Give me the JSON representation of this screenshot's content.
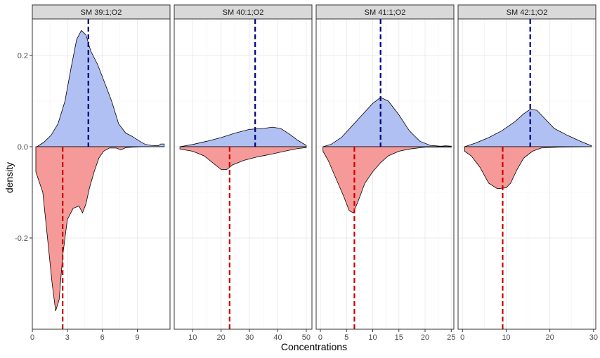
{
  "chart_data": {
    "type": "area",
    "xlabel": "Concentrations",
    "ylabel": "density",
    "ylim": [
      -0.4,
      0.28
    ],
    "yticks": [
      0.2,
      0.0,
      -0.2
    ],
    "ytick_labels": [
      "0.2",
      "0.0",
      "-0.2"
    ],
    "grid": true,
    "colors": {
      "upper_fill": "#b0c0f2",
      "lower_fill": "#f59a98",
      "upper_mean_line": "#000080",
      "lower_mean_line": "#cc0000",
      "strip_bg": "#d9d9d9"
    },
    "panels": [
      {
        "label": "SM 39:1;O2",
        "xlim": [
          0,
          11.8
        ],
        "xticks": [
          0,
          3,
          6,
          9
        ],
        "upper_mean": 4.8,
        "lower_mean": 2.6,
        "upper": [
          [
            0.4,
            0.0
          ],
          [
            1.0,
            0.01
          ],
          [
            1.6,
            0.025
          ],
          [
            2.2,
            0.05
          ],
          [
            2.8,
            0.1
          ],
          [
            3.3,
            0.17
          ],
          [
            3.8,
            0.235
          ],
          [
            4.2,
            0.255
          ],
          [
            4.6,
            0.245
          ],
          [
            5.0,
            0.21
          ],
          [
            5.6,
            0.18
          ],
          [
            6.2,
            0.14
          ],
          [
            6.8,
            0.1
          ],
          [
            7.4,
            0.05
          ],
          [
            8.0,
            0.03
          ],
          [
            8.6,
            0.022
          ],
          [
            9.2,
            0.012
          ],
          [
            9.7,
            0.005
          ],
          [
            10.2,
            0.003
          ],
          [
            10.8,
            0.002
          ],
          [
            11.0,
            0.006
          ],
          [
            11.3,
            0.006
          ]
        ],
        "lower": [
          [
            0.3,
            -0.055
          ],
          [
            0.9,
            -0.1
          ],
          [
            1.3,
            -0.2
          ],
          [
            1.7,
            -0.3
          ],
          [
            2.0,
            -0.36
          ],
          [
            2.3,
            -0.335
          ],
          [
            2.6,
            -0.24
          ],
          [
            3.0,
            -0.16
          ],
          [
            3.5,
            -0.135
          ],
          [
            4.0,
            -0.13
          ],
          [
            4.3,
            -0.145
          ],
          [
            4.6,
            -0.125
          ],
          [
            4.9,
            -0.09
          ],
          [
            5.3,
            -0.055
          ],
          [
            5.7,
            -0.025
          ],
          [
            6.1,
            -0.01
          ],
          [
            6.6,
            -0.003
          ],
          [
            7.2,
            -0.003
          ],
          [
            7.6,
            -0.007
          ],
          [
            8.0,
            -0.002
          ],
          [
            8.6,
            -0.001
          ],
          [
            9.5,
            0.0
          ],
          [
            11.3,
            0.0
          ]
        ]
      },
      {
        "label": "SM 40:1;O2",
        "xlim": [
          3.5,
          52
        ],
        "xticks": [
          10,
          20,
          30,
          40,
          50
        ],
        "upper_mean": 32,
        "lower_mean": 23,
        "upper": [
          [
            5.5,
            0.0
          ],
          [
            10,
            0.005
          ],
          [
            15,
            0.012
          ],
          [
            20,
            0.02
          ],
          [
            25,
            0.03
          ],
          [
            30,
            0.038
          ],
          [
            35,
            0.04
          ],
          [
            38,
            0.043
          ],
          [
            41,
            0.04
          ],
          [
            44,
            0.028
          ],
          [
            47,
            0.014
          ],
          [
            50,
            0.003
          ]
        ],
        "lower": [
          [
            5.5,
            -0.005
          ],
          [
            10,
            -0.01
          ],
          [
            14,
            -0.02
          ],
          [
            17,
            -0.035
          ],
          [
            20,
            -0.05
          ],
          [
            22,
            -0.05
          ],
          [
            24,
            -0.04
          ],
          [
            28,
            -0.03
          ],
          [
            33,
            -0.022
          ],
          [
            38,
            -0.016
          ],
          [
            43,
            -0.009
          ],
          [
            47,
            -0.004
          ],
          [
            50,
            -0.002
          ]
        ]
      },
      {
        "label": "SM 41:1;O2",
        "xlim": [
          -0.8,
          25.5
        ],
        "xticks": [
          0,
          5,
          10,
          15,
          20,
          25
        ],
        "upper_mean": 11.5,
        "lower_mean": 6.5,
        "upper": [
          [
            0.5,
            0.0
          ],
          [
            2,
            0.005
          ],
          [
            4,
            0.02
          ],
          [
            6,
            0.045
          ],
          [
            8,
            0.07
          ],
          [
            10,
            0.095
          ],
          [
            11.5,
            0.108
          ],
          [
            13,
            0.1
          ],
          [
            15,
            0.07
          ],
          [
            17,
            0.035
          ],
          [
            19,
            0.012
          ],
          [
            21,
            0.003
          ],
          [
            23,
            0.001
          ],
          [
            24,
            0.002
          ],
          [
            25,
            0.001
          ]
        ],
        "lower": [
          [
            0.5,
            -0.01
          ],
          [
            1.5,
            -0.03
          ],
          [
            3,
            -0.07
          ],
          [
            4.5,
            -0.11
          ],
          [
            5.5,
            -0.14
          ],
          [
            6.3,
            -0.145
          ],
          [
            7.2,
            -0.12
          ],
          [
            8.5,
            -0.08
          ],
          [
            10,
            -0.055
          ],
          [
            11.5,
            -0.035
          ],
          [
            13,
            -0.02
          ],
          [
            15,
            -0.01
          ],
          [
            17,
            -0.005
          ],
          [
            20,
            -0.001
          ],
          [
            25,
            -0.001
          ]
        ]
      },
      {
        "label": "SM 42:1;O2",
        "xlim": [
          -1,
          30.5
        ],
        "xticks": [
          0,
          10,
          20,
          30
        ],
        "upper_mean": 15.5,
        "lower_mean": 9.2,
        "upper": [
          [
            0.5,
            0.0
          ],
          [
            3,
            0.008
          ],
          [
            6,
            0.02
          ],
          [
            9,
            0.035
          ],
          [
            12,
            0.055
          ],
          [
            14,
            0.072
          ],
          [
            15.5,
            0.082
          ],
          [
            17,
            0.08
          ],
          [
            19,
            0.06
          ],
          [
            21,
            0.04
          ],
          [
            24,
            0.025
          ],
          [
            27,
            0.012
          ],
          [
            29.5,
            0.002
          ]
        ],
        "lower": [
          [
            0.5,
            -0.01
          ],
          [
            2,
            -0.02
          ],
          [
            4,
            -0.045
          ],
          [
            6,
            -0.08
          ],
          [
            8,
            -0.092
          ],
          [
            10,
            -0.09
          ],
          [
            11,
            -0.08
          ],
          [
            12.5,
            -0.05
          ],
          [
            14,
            -0.025
          ],
          [
            16,
            -0.01
          ],
          [
            18,
            -0.003
          ],
          [
            22,
            -0.001
          ],
          [
            29.5,
            0.0
          ]
        ]
      }
    ]
  }
}
